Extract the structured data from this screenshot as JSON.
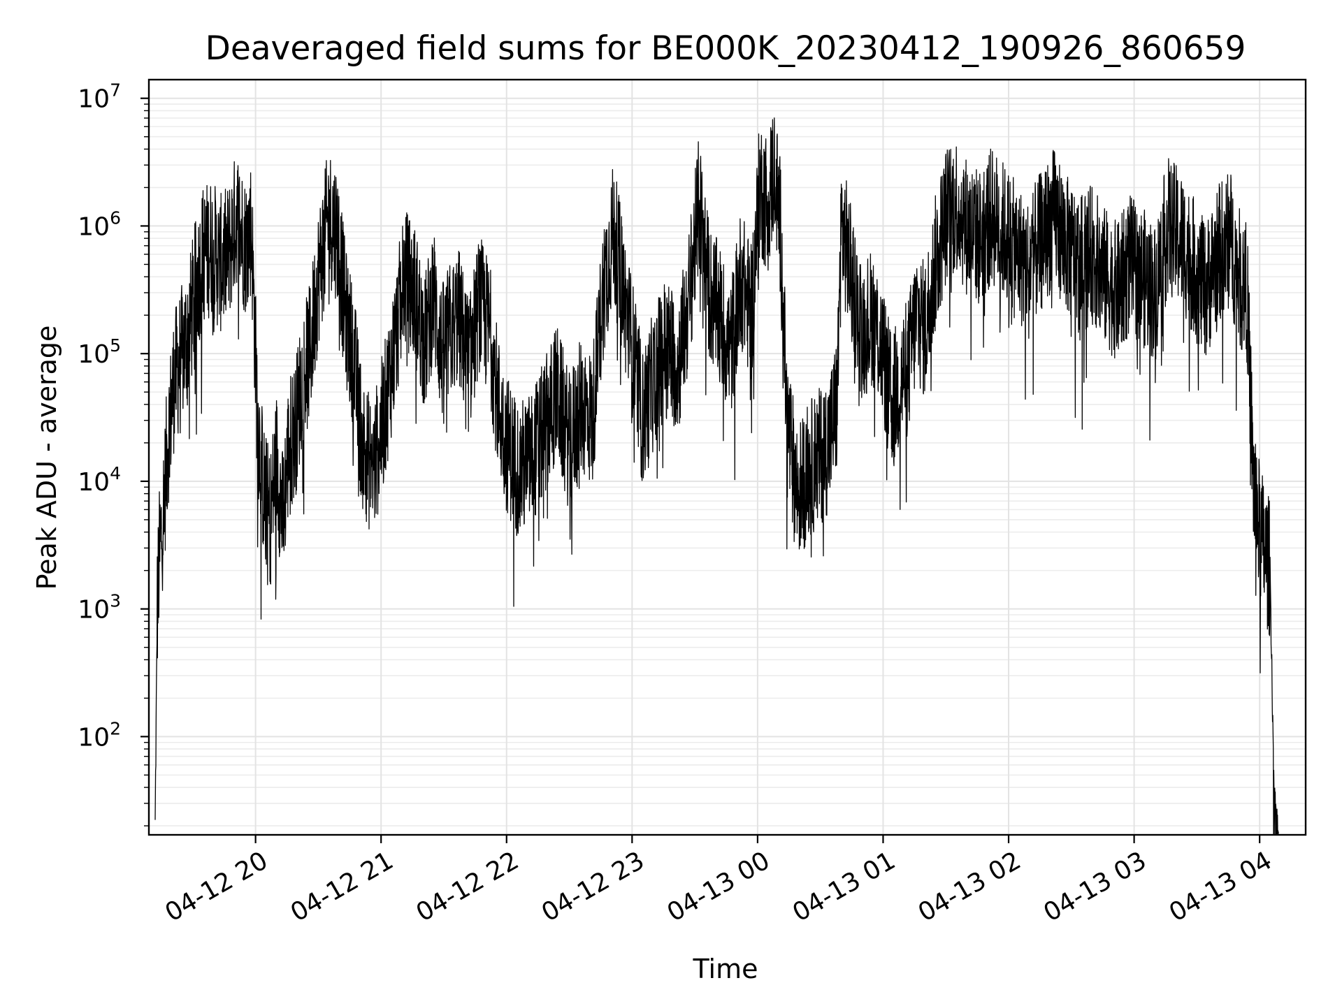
{
  "chart_data": {
    "type": "line",
    "title": "Deaveraged field sums for BE000K_20230412_190926_860659",
    "xlabel": "Time",
    "ylabel": "Peak ADU - average",
    "y_scale": "log",
    "ylim": [
      17,
      14000000
    ],
    "xlim": [
      "2023-04-12 19:09",
      "2023-04-13 04:22"
    ],
    "grid": "major and minor",
    "x_tick_labels": [
      "04-12 20",
      "04-12 21",
      "04-12 22",
      "04-12 23",
      "04-13 00",
      "04-13 01",
      "04-13 02",
      "04-13 03",
      "04-13 04"
    ],
    "y_tick_labels": [
      "2",
      "3",
      "4",
      "5",
      "6",
      "7"
    ],
    "y_tick_base": "10",
    "series_color": "#000000",
    "series": [
      {
        "x": [
          "2023-04-12 19:12",
          "2023-04-12 19:13",
          "2023-04-12 19:14",
          "2023-04-12 19:16",
          "2023-04-12 19:18",
          "2023-04-12 19:21",
          "2023-04-12 19:24",
          "2023-04-12 19:28",
          "2023-04-12 19:31",
          "2023-04-12 19:35",
          "2023-04-12 19:39",
          "2023-04-12 19:43",
          "2023-04-12 19:47",
          "2023-04-12 19:51",
          "2023-04-12 19:55",
          "2023-04-12 19:58",
          "2023-04-12 20:01",
          "2023-04-12 20:04",
          "2023-04-12 20:07",
          "2023-04-12 20:10",
          "2023-04-12 20:13",
          "2023-04-12 20:16",
          "2023-04-12 20:19",
          "2023-04-12 20:22",
          "2023-04-12 20:26",
          "2023-04-12 20:30",
          "2023-04-12 20:35",
          "2023-04-12 20:39",
          "2023-04-12 20:43",
          "2023-04-12 20:47",
          "2023-04-12 20:51",
          "2023-04-12 20:56",
          "2023-04-12 21:01",
          "2023-04-12 21:06",
          "2023-04-12 21:11",
          "2023-04-12 21:16",
          "2023-04-12 21:21",
          "2023-04-12 21:25",
          "2023-04-12 21:29",
          "2023-04-12 21:33",
          "2023-04-12 21:37",
          "2023-04-12 21:42",
          "2023-04-12 21:47",
          "2023-04-12 21:52",
          "2023-04-12 21:56",
          "2023-04-12 22:00",
          "2023-04-12 22:06",
          "2023-04-12 22:12",
          "2023-04-12 22:18",
          "2023-04-12 22:24",
          "2023-04-12 22:30",
          "2023-04-12 22:36",
          "2023-04-12 22:41",
          "2023-04-12 22:46",
          "2023-04-12 22:51",
          "2023-04-12 22:56",
          "2023-04-12 23:01",
          "2023-04-12 23:05",
          "2023-04-12 23:10",
          "2023-04-12 23:16",
          "2023-04-12 23:22",
          "2023-04-12 23:27",
          "2023-04-12 23:32",
          "2023-04-12 23:37",
          "2023-04-12 23:42",
          "2023-04-12 23:47",
          "2023-04-12 23:52",
          "2023-04-12 23:57",
          "2023-04-13 00:01",
          "2023-04-13 00:05",
          "2023-04-13 00:08",
          "2023-04-13 00:11",
          "2023-04-13 00:14",
          "2023-04-13 00:19",
          "2023-04-13 00:24",
          "2023-04-13 00:29",
          "2023-04-13 00:34",
          "2023-04-13 00:38",
          "2023-04-13 00:40",
          "2023-04-13 00:43",
          "2023-04-13 00:46",
          "2023-04-13 00:50",
          "2023-04-13 00:55",
          "2023-04-13 01:00",
          "2023-04-13 01:04",
          "2023-04-13 01:08",
          "2023-04-13 01:12",
          "2023-04-13 01:16",
          "2023-04-13 01:20",
          "2023-04-13 01:25",
          "2023-04-13 01:30",
          "2023-04-13 01:35",
          "2023-04-13 01:40",
          "2023-04-13 01:46",
          "2023-04-13 01:52",
          "2023-04-13 01:58",
          "2023-04-13 02:04",
          "2023-04-13 02:10",
          "2023-04-13 02:16",
          "2023-04-13 02:22",
          "2023-04-13 02:28",
          "2023-04-13 02:34",
          "2023-04-13 02:40",
          "2023-04-13 02:46",
          "2023-04-13 02:52",
          "2023-04-13 02:58",
          "2023-04-13 03:04",
          "2023-04-13 03:10",
          "2023-04-13 03:16",
          "2023-04-13 03:22",
          "2023-04-13 03:28",
          "2023-04-13 03:34",
          "2023-04-13 03:40",
          "2023-04-13 03:46",
          "2023-04-13 03:50",
          "2023-04-13 03:54",
          "2023-04-13 03:57",
          "2023-04-13 03:59",
          "2023-04-13 04:02",
          "2023-04-13 04:05",
          "2023-04-13 04:07",
          "2023-04-13 04:09"
        ],
        "values": [
          20,
          1000,
          2500,
          6000,
          20000,
          60000,
          90000,
          150000,
          300000,
          600000,
          700000,
          500000,
          600000,
          1200000,
          700000,
          1000000,
          30000,
          8000,
          5000,
          15000,
          5000,
          20000,
          25000,
          60000,
          100000,
          400000,
          1200000,
          900000,
          200000,
          90000,
          20000,
          12000,
          30000,
          100000,
          400000,
          300000,
          120000,
          300000,
          100000,
          150000,
          200000,
          80000,
          250000,
          150000,
          40000,
          20000,
          12000,
          15000,
          25000,
          50000,
          20000,
          40000,
          30000,
          300000,
          900000,
          300000,
          90000,
          30000,
          60000,
          120000,
          80000,
          250000,
          1500000,
          300000,
          200000,
          100000,
          400000,
          200000,
          2000000,
          1500000,
          3000000,
          900000,
          30000,
          8000,
          12000,
          15000,
          20000,
          40000,
          1000000,
          600000,
          300000,
          150000,
          200000,
          100000,
          40000,
          60000,
          80000,
          200000,
          150000,
          500000,
          1200000,
          1500000,
          1000000,
          800000,
          1200000,
          900000,
          600000,
          500000,
          800000,
          1200000,
          700000,
          500000,
          600000,
          400000,
          300000,
          500000,
          400000,
          300000,
          1000000,
          800000,
          500000,
          300000,
          600000,
          800000,
          400000,
          300000,
          10000,
          5000,
          3000,
          2000,
          30,
          18
        ]
      }
    ]
  }
}
